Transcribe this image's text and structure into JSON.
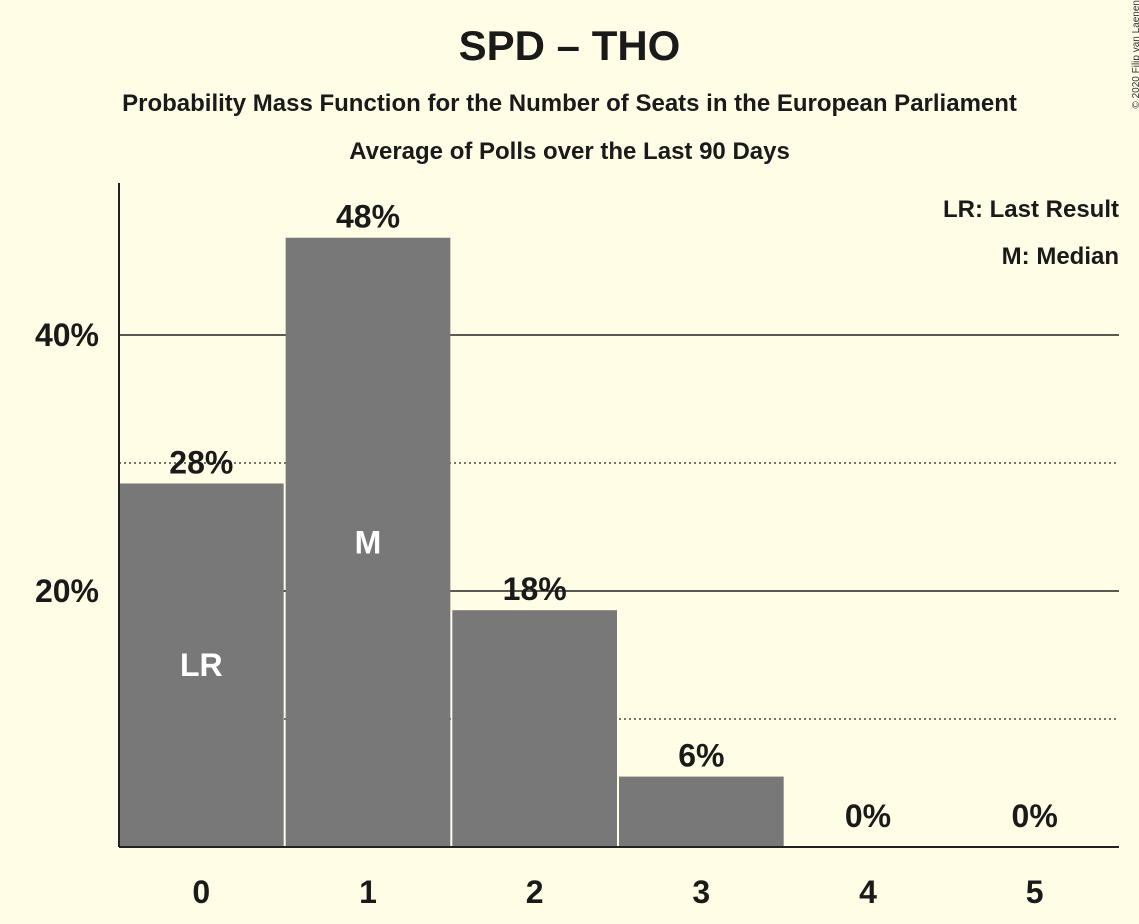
{
  "copyright": "© 2020 Filip van Laenen",
  "chart_data": {
    "type": "bar",
    "title": "SPD – THO",
    "subtitle": "Probability Mass Function for the Number of Seats in the European Parliament",
    "subtitle2": "Average of Polls over the Last 90 Days",
    "categories": [
      "0",
      "1",
      "2",
      "3",
      "4",
      "5"
    ],
    "values": [
      28.4,
      47.6,
      18.5,
      5.5,
      0,
      0
    ],
    "value_labels": [
      "28%",
      "48%",
      "18%",
      "6%",
      "0%",
      "0%"
    ],
    "bar_annotations": [
      "LR",
      "M",
      "",
      "",
      "",
      ""
    ],
    "y_ticks": [
      20,
      40
    ],
    "y_tick_labels": [
      "20%",
      "40%"
    ],
    "y_dotted_lines": [
      10,
      30
    ],
    "ylim": [
      0,
      52
    ],
    "legend": [
      "LR: Last Result",
      "M: Median"
    ],
    "legend_position": "top-right",
    "bar_color": "#787878"
  }
}
